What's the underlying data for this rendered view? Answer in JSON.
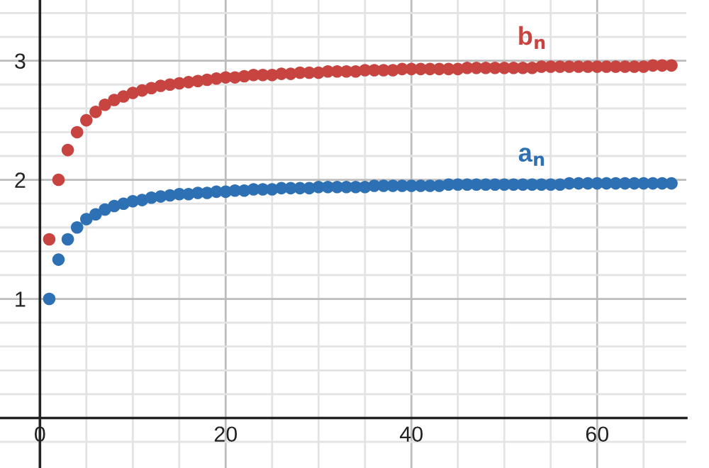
{
  "chart_data": {
    "type": "scatter",
    "x": [
      1,
      2,
      3,
      4,
      5,
      6,
      7,
      8,
      9,
      10,
      11,
      12,
      13,
      14,
      15,
      16,
      17,
      18,
      19,
      20,
      21,
      22,
      23,
      24,
      25,
      26,
      27,
      28,
      29,
      30,
      31,
      32,
      33,
      34,
      35,
      36,
      37,
      38,
      39,
      40,
      41,
      42,
      43,
      44,
      45,
      46,
      47,
      48,
      49,
      50,
      51,
      52,
      53,
      54,
      55,
      56,
      57,
      58,
      59,
      60,
      61,
      62,
      63,
      64,
      65,
      66,
      67,
      68
    ],
    "series": [
      {
        "name": "b$_{n}$",
        "color": "#c74440",
        "values": [
          1.5,
          2,
          2.25,
          2.4,
          2.5,
          2.57,
          2.63,
          2.67,
          2.7,
          2.73,
          2.75,
          2.77,
          2.79,
          2.8,
          2.81,
          2.82,
          2.83,
          2.84,
          2.85,
          2.86,
          2.86,
          2.87,
          2.88,
          2.88,
          2.88,
          2.89,
          2.89,
          2.9,
          2.9,
          2.9,
          2.91,
          2.91,
          2.91,
          2.91,
          2.92,
          2.92,
          2.92,
          2.92,
          2.93,
          2.93,
          2.93,
          2.93,
          2.93,
          2.93,
          2.93,
          2.94,
          2.94,
          2.94,
          2.94,
          2.94,
          2.94,
          2.94,
          2.94,
          2.95,
          2.95,
          2.95,
          2.95,
          2.95,
          2.95,
          2.95,
          2.95,
          2.95,
          2.95,
          2.95,
          2.95,
          2.96,
          2.96,
          2.96
        ]
      },
      {
        "name": "a$_{n}$",
        "color": "#2d70b3",
        "values": [
          1,
          1.33,
          1.5,
          1.6,
          1.67,
          1.71,
          1.75,
          1.78,
          1.8,
          1.82,
          1.83,
          1.85,
          1.86,
          1.87,
          1.88,
          1.88,
          1.89,
          1.89,
          1.9,
          1.9,
          1.91,
          1.91,
          1.92,
          1.92,
          1.92,
          1.93,
          1.93,
          1.93,
          1.93,
          1.94,
          1.94,
          1.94,
          1.94,
          1.94,
          1.94,
          1.95,
          1.95,
          1.95,
          1.95,
          1.95,
          1.95,
          1.95,
          1.95,
          1.96,
          1.96,
          1.96,
          1.96,
          1.96,
          1.96,
          1.96,
          1.96,
          1.96,
          1.96,
          1.96,
          1.96,
          1.96,
          1.97,
          1.97,
          1.97,
          1.97,
          1.97,
          1.97,
          1.97,
          1.97,
          1.97,
          1.97,
          1.97,
          1.97
        ]
      }
    ],
    "xlim": [
      -4.3,
      69.6
    ],
    "ylim": [
      -0.42,
      3.51
    ],
    "xticks": [
      {
        "value": 0,
        "label": "0"
      },
      {
        "value": 5,
        "label": null
      },
      {
        "value": 10,
        "label": null
      },
      {
        "value": 15,
        "label": null
      },
      20,
      {
        "value": 25,
        "label": null
      },
      {
        "value": 30,
        "label": null
      },
      {
        "value": 35,
        "label": null
      },
      40,
      {
        "value": 45,
        "label": null
      },
      {
        "value": 50,
        "label": null
      },
      {
        "value": 55,
        "label": null
      },
      60,
      {
        "value": 65,
        "label": null
      }
    ],
    "yticks": [
      {
        "value": -0.2,
        "label": null
      },
      {
        "value": 0,
        "label": null
      },
      {
        "value": 0.2,
        "label": null
      },
      {
        "value": 0.4,
        "label": null
      },
      {
        "value": 0.6,
        "label": null
      },
      {
        "value": 0.8,
        "label": null
      },
      1,
      {
        "value": 1.2,
        "label": null
      },
      {
        "value": 1.4,
        "label": null
      },
      {
        "value": 1.6,
        "label": null
      },
      {
        "value": 1.8,
        "label": null
      },
      2,
      {
        "value": 2.2,
        "label": null
      },
      {
        "value": 2.4,
        "label": null
      },
      {
        "value": 2.6,
        "label": null
      },
      {
        "value": 2.8,
        "label": null
      },
      3,
      {
        "value": 3.2,
        "label": null
      },
      {
        "value": 3.4,
        "label": null
      }
    ],
    "grid": true,
    "marker": "circle",
    "legend": false
  }
}
